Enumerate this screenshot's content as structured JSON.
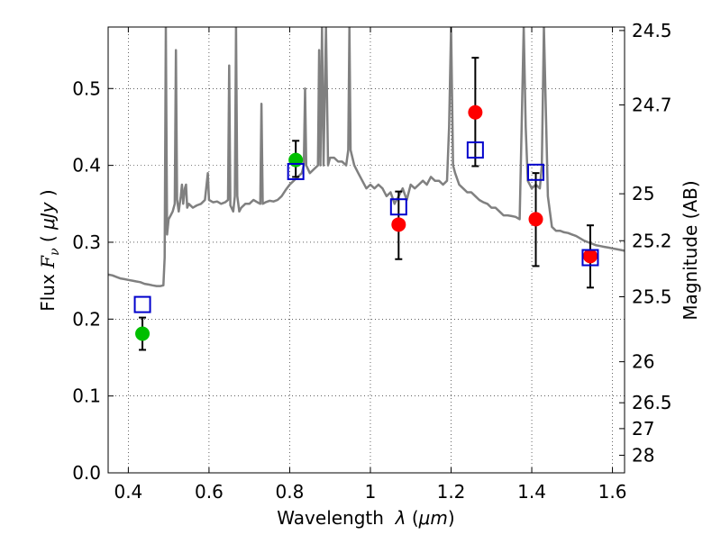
{
  "chart_data": {
    "type": "scatter",
    "xlabel": "Wavelength  λ (μm)",
    "ylabel": "Flux  F_ν  ( μJy )",
    "ylabel_parts": {
      "prefix": "Flux ",
      "symbol": "F",
      "subscript": "ν",
      "open": " ( ",
      "unit": "μJy",
      "close": " )"
    },
    "xlabel_parts": {
      "prefix": "Wavelength  ",
      "symbol": "λ",
      "open": " (",
      "unit": "μm",
      "close": ")"
    },
    "y2label": "Magnitude (AB)",
    "xlim": [
      0.35,
      1.63
    ],
    "ylim": [
      0.0,
      0.58
    ],
    "grid": true,
    "x_ticks": [
      {
        "value": 0.4,
        "label": "0.4"
      },
      {
        "value": 0.6,
        "label": "0.6"
      },
      {
        "value": 0.8,
        "label": "0.8"
      },
      {
        "value": 1.0,
        "label": "1"
      },
      {
        "value": 1.2,
        "label": "1.2"
      },
      {
        "value": 1.4,
        "label": "1.4"
      },
      {
        "value": 1.6,
        "label": "1.6"
      }
    ],
    "y_ticks": [
      {
        "value": 0.0,
        "label": "0.0"
      },
      {
        "value": 0.1,
        "label": "0.1"
      },
      {
        "value": 0.2,
        "label": "0.2"
      },
      {
        "value": 0.3,
        "label": "0.3"
      },
      {
        "value": 0.4,
        "label": "0.4"
      },
      {
        "value": 0.5,
        "label": "0.5"
      }
    ],
    "y2_ticks": [
      {
        "value": 24.5,
        "label": "24.5"
      },
      {
        "value": 24.7,
        "label": "24.7"
      },
      {
        "value": 25.0,
        "label": "25"
      },
      {
        "value": 25.2,
        "label": "25.2"
      },
      {
        "value": 25.5,
        "label": "25.5"
      },
      {
        "value": 26.0,
        "label": "26"
      },
      {
        "value": 26.5,
        "label": "26.5"
      },
      {
        "value": 27.0,
        "label": "27"
      },
      {
        "value": 28.0,
        "label": "28"
      }
    ],
    "series": [
      {
        "type": "line",
        "color": "#808080",
        "points": [
          [
            0.35,
            0.258
          ],
          [
            0.36,
            0.257
          ],
          [
            0.37,
            0.255
          ],
          [
            0.38,
            0.253
          ],
          [
            0.39,
            0.252
          ],
          [
            0.4,
            0.251
          ],
          [
            0.41,
            0.25
          ],
          [
            0.42,
            0.249
          ],
          [
            0.43,
            0.248
          ],
          [
            0.44,
            0.246
          ],
          [
            0.45,
            0.245
          ],
          [
            0.46,
            0.244
          ],
          [
            0.47,
            0.243
          ],
          [
            0.48,
            0.243
          ],
          [
            0.487,
            0.244
          ],
          [
            0.49,
            0.28
          ],
          [
            0.493,
            0.58
          ],
          [
            0.496,
            0.31
          ],
          [
            0.5,
            0.33
          ],
          [
            0.505,
            0.335
          ],
          [
            0.51,
            0.34
          ],
          [
            0.515,
            0.35
          ],
          [
            0.518,
            0.55
          ],
          [
            0.521,
            0.355
          ],
          [
            0.525,
            0.34
          ],
          [
            0.53,
            0.36
          ],
          [
            0.533,
            0.375
          ],
          [
            0.536,
            0.35
          ],
          [
            0.54,
            0.37
          ],
          [
            0.543,
            0.375
          ],
          [
            0.546,
            0.345
          ],
          [
            0.55,
            0.35
          ],
          [
            0.56,
            0.345
          ],
          [
            0.57,
            0.348
          ],
          [
            0.58,
            0.35
          ],
          [
            0.59,
            0.355
          ],
          [
            0.597,
            0.39
          ],
          [
            0.6,
            0.355
          ],
          [
            0.61,
            0.352
          ],
          [
            0.62,
            0.353
          ],
          [
            0.63,
            0.35
          ],
          [
            0.64,
            0.352
          ],
          [
            0.647,
            0.355
          ],
          [
            0.65,
            0.53
          ],
          [
            0.653,
            0.348
          ],
          [
            0.66,
            0.34
          ],
          [
            0.664,
            0.36
          ],
          [
            0.667,
            0.58
          ],
          [
            0.67,
            0.36
          ],
          [
            0.675,
            0.34
          ],
          [
            0.68,
            0.345
          ],
          [
            0.69,
            0.35
          ],
          [
            0.7,
            0.35
          ],
          [
            0.71,
            0.355
          ],
          [
            0.72,
            0.352
          ],
          [
            0.727,
            0.35
          ],
          [
            0.73,
            0.48
          ],
          [
            0.733,
            0.35
          ],
          [
            0.74,
            0.352
          ],
          [
            0.75,
            0.354
          ],
          [
            0.76,
            0.353
          ],
          [
            0.77,
            0.355
          ],
          [
            0.78,
            0.36
          ],
          [
            0.79,
            0.368
          ],
          [
            0.8,
            0.375
          ],
          [
            0.81,
            0.38
          ],
          [
            0.82,
            0.385
          ],
          [
            0.83,
            0.39
          ],
          [
            0.835,
            0.4
          ],
          [
            0.838,
            0.5
          ],
          [
            0.841,
            0.4
          ],
          [
            0.85,
            0.39
          ],
          [
            0.86,
            0.395
          ],
          [
            0.87,
            0.4
          ],
          [
            0.873,
            0.55
          ],
          [
            0.876,
            0.4
          ],
          [
            0.88,
            0.58
          ],
          [
            0.884,
            0.4
          ],
          [
            0.89,
            0.58
          ],
          [
            0.895,
            0.4
          ],
          [
            0.9,
            0.41
          ],
          [
            0.91,
            0.41
          ],
          [
            0.92,
            0.405
          ],
          [
            0.93,
            0.405
          ],
          [
            0.94,
            0.4
          ],
          [
            0.945,
            0.42
          ],
          [
            0.948,
            0.58
          ],
          [
            0.951,
            0.42
          ],
          [
            0.96,
            0.4
          ],
          [
            0.97,
            0.39
          ],
          [
            0.98,
            0.38
          ],
          [
            0.99,
            0.37
          ],
          [
            1.0,
            0.375
          ],
          [
            1.01,
            0.37
          ],
          [
            1.02,
            0.375
          ],
          [
            1.03,
            0.37
          ],
          [
            1.04,
            0.36
          ],
          [
            1.05,
            0.365
          ],
          [
            1.06,
            0.35
          ],
          [
            1.07,
            0.36
          ],
          [
            1.08,
            0.37
          ],
          [
            1.09,
            0.355
          ],
          [
            1.1,
            0.375
          ],
          [
            1.11,
            0.37
          ],
          [
            1.12,
            0.375
          ],
          [
            1.13,
            0.38
          ],
          [
            1.14,
            0.375
          ],
          [
            1.15,
            0.385
          ],
          [
            1.16,
            0.38
          ],
          [
            1.17,
            0.38
          ],
          [
            1.18,
            0.375
          ],
          [
            1.19,
            0.38
          ],
          [
            1.195,
            0.45
          ],
          [
            1.2,
            0.58
          ],
          [
            1.205,
            0.4
          ],
          [
            1.21,
            0.39
          ],
          [
            1.22,
            0.375
          ],
          [
            1.23,
            0.37
          ],
          [
            1.24,
            0.365
          ],
          [
            1.25,
            0.365
          ],
          [
            1.26,
            0.36
          ],
          [
            1.27,
            0.355
          ],
          [
            1.28,
            0.352
          ],
          [
            1.29,
            0.35
          ],
          [
            1.3,
            0.345
          ],
          [
            1.31,
            0.345
          ],
          [
            1.32,
            0.34
          ],
          [
            1.33,
            0.335
          ],
          [
            1.34,
            0.335
          ],
          [
            1.35,
            0.334
          ],
          [
            1.36,
            0.333
          ],
          [
            1.37,
            0.33
          ],
          [
            1.375,
            0.45
          ],
          [
            1.38,
            0.58
          ],
          [
            1.385,
            0.45
          ],
          [
            1.39,
            0.38
          ],
          [
            1.4,
            0.37
          ],
          [
            1.41,
            0.375
          ],
          [
            1.42,
            0.37
          ],
          [
            1.425,
            0.4
          ],
          [
            1.43,
            0.58
          ],
          [
            1.44,
            0.36
          ],
          [
            1.45,
            0.32
          ],
          [
            1.46,
            0.315
          ],
          [
            1.47,
            0.315
          ],
          [
            1.48,
            0.313
          ],
          [
            1.49,
            0.312
          ],
          [
            1.5,
            0.31
          ],
          [
            1.51,
            0.308
          ],
          [
            1.52,
            0.305
          ],
          [
            1.53,
            0.302
          ],
          [
            1.54,
            0.3
          ],
          [
            1.55,
            0.298
          ],
          [
            1.56,
            0.296
          ],
          [
            1.57,
            0.295
          ],
          [
            1.58,
            0.294
          ],
          [
            1.59,
            0.293
          ],
          [
            1.6,
            0.292
          ],
          [
            1.61,
            0.291
          ],
          [
            1.62,
            0.29
          ],
          [
            1.63,
            0.289
          ]
        ]
      },
      {
        "type": "errorbar",
        "color": "#000000",
        "points": [
          {
            "x": 0.435,
            "y": 0.181,
            "ylo": 0.16,
            "yhi": 0.202
          },
          {
            "x": 0.815,
            "y": 0.407,
            "ylo": 0.385,
            "yhi": 0.432
          },
          {
            "x": 1.07,
            "y": 0.323,
            "ylo": 0.278,
            "yhi": 0.366
          },
          {
            "x": 1.26,
            "y": 0.469,
            "ylo": 0.399,
            "yhi": 0.54
          },
          {
            "x": 1.41,
            "y": 0.33,
            "ylo": 0.269,
            "yhi": 0.39
          },
          {
            "x": 1.545,
            "y": 0.282,
            "ylo": 0.241,
            "yhi": 0.322
          }
        ]
      },
      {
        "type": "scatter",
        "marker": "circle",
        "color": "#00bf00",
        "points": [
          [
            0.435,
            0.181
          ],
          [
            0.815,
            0.407
          ]
        ]
      },
      {
        "type": "scatter",
        "marker": "circle",
        "color": "#ff0000",
        "points": [
          [
            1.07,
            0.323
          ],
          [
            1.26,
            0.469
          ],
          [
            1.41,
            0.33
          ],
          [
            1.545,
            0.282
          ]
        ]
      },
      {
        "type": "scatter",
        "marker": "open-square",
        "color": "#0000cc",
        "points": [
          [
            0.435,
            0.219
          ],
          [
            0.815,
            0.392
          ],
          [
            1.07,
            0.346
          ],
          [
            1.26,
            0.42
          ],
          [
            1.41,
            0.391
          ],
          [
            1.545,
            0.28
          ]
        ]
      }
    ]
  }
}
